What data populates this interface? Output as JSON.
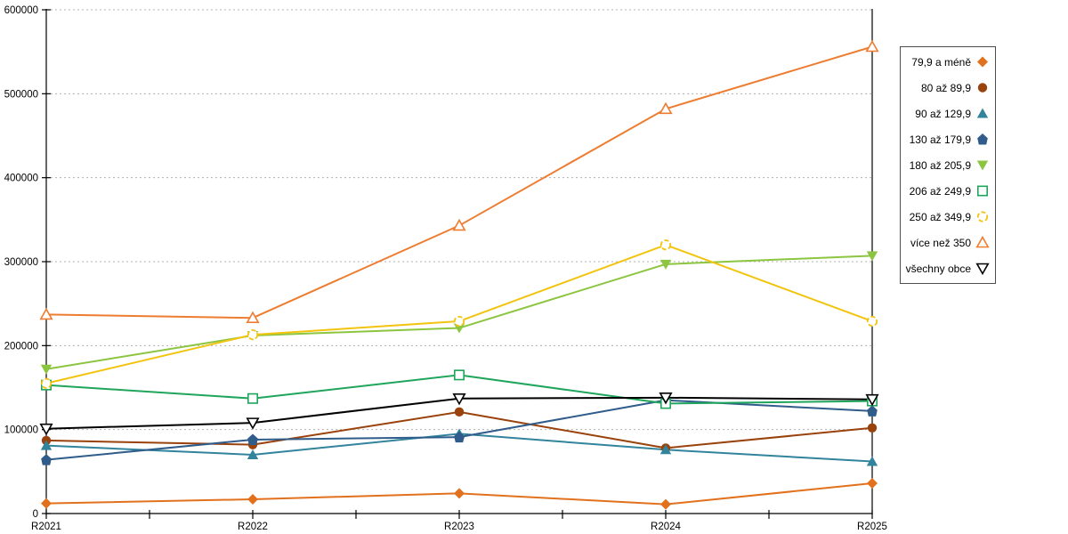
{
  "chart_data": {
    "type": "line",
    "title": "",
    "xlabel": "",
    "ylabel": "",
    "categories": [
      "R2021",
      "R2022",
      "R2023",
      "R2024",
      "R2025"
    ],
    "series": [
      {
        "name": "79,9 a méně",
        "color": "#E2711D",
        "marker": "diamond",
        "filled": true,
        "values": [
          12000,
          17000,
          24000,
          11000,
          36000
        ]
      },
      {
        "name": "80 až 89,9",
        "color": "#9A420C",
        "marker": "circle",
        "filled": true,
        "values": [
          87000,
          82000,
          121000,
          78000,
          102000
        ]
      },
      {
        "name": "90 až 129,9",
        "color": "#31849B",
        "marker": "triangle-up",
        "filled": true,
        "values": [
          81000,
          70000,
          95000,
          76000,
          62000
        ]
      },
      {
        "name": "130 až 179,9",
        "color": "#2F5C8A",
        "marker": "pentagon",
        "filled": true,
        "values": [
          64000,
          88000,
          91000,
          135000,
          122000
        ]
      },
      {
        "name": "180 až 205,9",
        "color": "#8CC540",
        "marker": "triangle-down",
        "filled": true,
        "values": [
          172000,
          212000,
          221000,
          297000,
          307000
        ]
      },
      {
        "name": "206 až 249,9",
        "color": "#1FA55C",
        "marker": "square",
        "filled": false,
        "values": [
          153000,
          137000,
          165000,
          131000,
          134000
        ]
      },
      {
        "name": "250 až 349,9",
        "color": "#F2C40F",
        "marker": "circle",
        "filled": false,
        "values": [
          155000,
          213000,
          229000,
          320000,
          229000
        ]
      },
      {
        "name": "více než 350",
        "color": "#ED7D31",
        "marker": "triangle-up",
        "filled": false,
        "values": [
          237000,
          233000,
          343000,
          482000,
          556000
        ]
      },
      {
        "name": "všechny obce",
        "color": "#000000",
        "marker": "triangle-down",
        "filled": false,
        "values": [
          101000,
          108000,
          137000,
          138000,
          136000
        ]
      }
    ],
    "ylim": [
      0,
      600000
    ],
    "y_ticks": [
      0,
      100000,
      200000,
      300000,
      400000,
      500000,
      600000
    ],
    "y_tick_labels": [
      "0",
      "100000",
      "200000",
      "300000",
      "400000",
      "500000",
      "600000"
    ],
    "x_minor_ticks_between_categories": true,
    "grid": "horizontal-dotted",
    "legend_position": "right"
  },
  "colors": {
    "axis": "#000000",
    "gridline": "#B0B0B0",
    "background": "#FFFFFF",
    "legend_border": "#4D4D4D",
    "tick_label": "#000000"
  }
}
